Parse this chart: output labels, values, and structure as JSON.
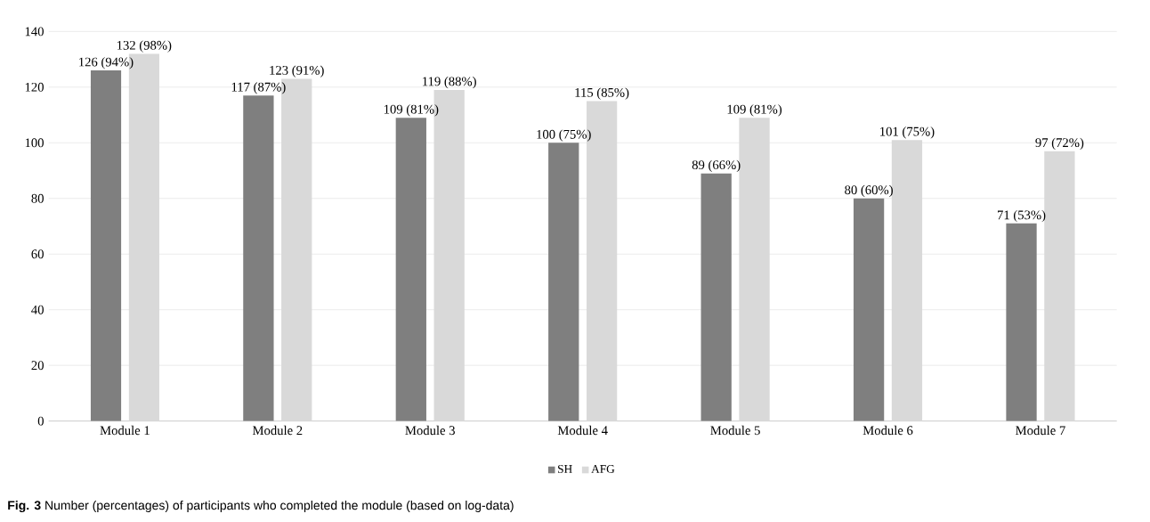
{
  "chart_data": {
    "type": "bar",
    "categories": [
      "Module 1",
      "Module 2",
      "Module 3",
      "Module 4",
      "Module 5",
      "Module 6",
      "Module 7"
    ],
    "series": [
      {
        "name": "SH",
        "color": "#7f7f7f",
        "values": [
          126,
          117,
          109,
          100,
          89,
          80,
          71
        ],
        "value_labels": [
          "126 (94%)",
          "117 (87%)",
          "109 (81%)",
          "100 (75%)",
          "89 (66%)",
          "80 (60%)",
          "71 (53%)"
        ]
      },
      {
        "name": "AFG",
        "color": "#d9d9d9",
        "values": [
          132,
          123,
          119,
          115,
          109,
          101,
          97
        ],
        "value_labels": [
          "132 (98%)",
          "123 (91%)",
          "119 (88%)",
          "115 (85%)",
          "109 (81%)",
          "101 (75%)",
          "97 (72%)"
        ]
      }
    ],
    "ylim": [
      0,
      140
    ],
    "yticks": [
      0,
      20,
      40,
      60,
      80,
      100,
      120,
      140
    ],
    "grid": "y",
    "legend": "bottom",
    "annotations": [
      "**Fig. 3** Number (percentages) of participants who completed the module (based on log-data)"
    ]
  }
}
